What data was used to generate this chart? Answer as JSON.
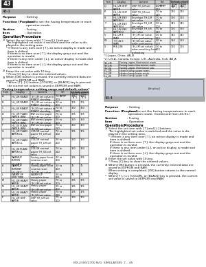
{
  "page_footer": "MX-2300/2700 N/G  SIMULATION  7 – 45",
  "section_number": "43",
  "subsection_1": "43-1",
  "subsection_4": "43-4",
  "left_rows": [
    [
      "A",
      "HL_LM READY",
      "TH_LM set value in\nREADY standing",
      "70 to\n200",
      "175",
      "160"
    ],
    [
      "B",
      "HL_LM READY",
      "TH_LM set values in\nREADY standing",
      "30 to\n200",
      "105",
      "105"
    ],
    [
      "C",
      "HL_US READY",
      "TH_US set values in\nREADY standing",
      "70 to\n210",
      "160",
      "160"
    ],
    [
      "D",
      "HL_LM PLAIN\nPAPER (BW)",
      "BW normal paper\nTH_LM set value",
      "70 to\n200",
      "175",
      "175"
    ],
    [
      "E",
      "HL_LM PLAIN\nPAPER (BW)",
      "BW normal paper\nTH_LM set value",
      "30 to\n200",
      "150",
      "150"
    ],
    [
      "F",
      "HL_US PLAIN\nPAPER (BW)",
      "BW normal paper\nTH_US set value",
      "70 to\n210",
      "160",
      "160"
    ],
    [
      "G",
      "HL_LM PLAIN\nPAPER-CL",
      "COLOR normal\npaper TH_LM set\nvalue",
      "70 to\n200",
      "175",
      "175"
    ],
    [
      "H",
      "HL_LM PLAIN\nPAPER-CL",
      "COLOR normal\npaper TH_LM set\nvalue",
      "30 to\n200",
      "150",
      "150"
    ],
    [
      "I",
      "HL_US PLAIN\nPAPER-CL",
      "COLOR normal\npaper TH_US set\nvalue",
      "70 to\n210",
      "160",
      "160"
    ],
    [
      "J",
      "WARMUP\nFUMON\nHL_LM T",
      "Fusing paper front\nrotation start\nTH_LM set value",
      "30 to\n200",
      "145",
      "145"
    ],
    [
      "K",
      "WARMUP\nFUMONT\nHL_LM T",
      "Fusing paper front\nrotation start\nTH_LM set value",
      "30 to\n200",
      "75",
      "75"
    ],
    [
      "L",
      "WARM UP\nEND TIME",
      "WARM UP\ncomplete time",
      "30 to\n255",
      "75",
      "75"
    ],
    [
      "M",
      "HL_LM HEAVY\nPAPER",
      "Heavy paper\nTH_LM set value",
      "70 to\n200",
      "175",
      "175"
    ],
    [
      "N",
      "HL_LM HEAVY\nPAPER",
      "Heavy paper\nTH_LM set value",
      "30 to\n200",
      "145",
      "145"
    ],
    [
      "O",
      "HL_US HEAVY\nPAPER",
      "Heavy paper\nTH_US set value",
      "70 to\n210",
      "175",
      "175"
    ],
    [
      "P",
      "HL_LM OHP\nPAPER",
      "OHP TH_LM set\nvalue",
      "70 to\n200",
      "170",
      "170"
    ]
  ],
  "right_rows": [
    [
      "Q",
      "HL_LM OHP\nPAPER",
      "OHP TH_LM set\nvalue",
      "60 to\n200",
      "145",
      "145"
    ],
    [
      "R",
      "HL_US OHP\nPAPER",
      "OHP TH_US set\nvalue",
      "70 to\n210",
      "170",
      "170"
    ],
    [
      "S",
      "HL_LM ENV\nPAPER(S)",
      "Envelope TH_LM\nset value",
      "70 to\n200",
      "160",
      "160"
    ],
    [
      "T",
      "HL_LM ENV\nPAPER(S)",
      "Envelope TH_LM\nset value",
      "30 to\n200",
      "145",
      "145"
    ],
    [
      "U",
      "HL_US ENV\nPAPER(S)",
      "Envelope TH_US\nset value",
      "70 to\n210",
      "160",
      "160"
    ],
    [
      "V",
      "HL_LM E\nSTAR",
      "TH_LM set value\nwhen preheating",
      "30 to\n200",
      "145",
      "142"
    ],
    [
      "W",
      "TH_US E\nSTAR",
      "TH_US set value\nwhen preheating",
      "30 to\n200",
      "150",
      "150"
    ],
    [
      "X",
      "PRE-JOB",
      "TH_LM set values\nwhen resetting from\npreheating",
      "30 to\n200",
      "160",
      "160"
    ]
  ],
  "footnote_1": "*1: Japan, China, AB_B",
  "footnote_2": "*2: U.S.A., Canada, Europe, U.K., Australia, Inch, AB_A",
  "legend_rows": [
    [
      "TH_LM",
      "Fusing upper thermistor main"
    ],
    [
      "TH_LM",
      "Fusing lower thermistor main"
    ],
    [
      "TH_US",
      "Fusing upper thermistor sub"
    ],
    [
      "HL_LM",
      "Heater lamp upper main"
    ],
    [
      "HL_LM",
      "Heater lamp lower main"
    ],
    [
      "HL_US",
      "Heater lamp upper sub"
    ]
  ],
  "bg_color": "#ffffff",
  "subsection_bg": "#aaaaaa",
  "table_header_bg": "#cccccc"
}
